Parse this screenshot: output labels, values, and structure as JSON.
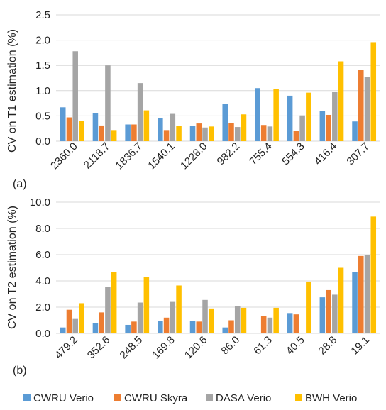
{
  "chart_data": [
    {
      "type": "bar",
      "panel_label": "(a)",
      "ylabel": "CV on T1 estimation (%)",
      "ylim": [
        0,
        2.5
      ],
      "yticks": [
        "0.0",
        "0.5",
        "1.0",
        "1.5",
        "2.0",
        "2.5"
      ],
      "grid": true,
      "categories": [
        "2360.0",
        "2118.7",
        "1836.7",
        "1540.1",
        "1228.0",
        "982.2",
        "755.4",
        "554.3",
        "416.4",
        "307.7"
      ],
      "series": [
        {
          "name": "CWRU Verio",
          "values": [
            0.67,
            0.55,
            0.33,
            0.45,
            0.3,
            0.74,
            1.05,
            0.9,
            0.59,
            0.39
          ]
        },
        {
          "name": "CWRU Skyra",
          "values": [
            0.47,
            0.31,
            0.33,
            0.22,
            0.35,
            0.36,
            0.32,
            0.21,
            0.52,
            1.41
          ]
        },
        {
          "name": "DASA Verio",
          "values": [
            1.78,
            1.5,
            1.15,
            0.54,
            0.27,
            0.28,
            0.29,
            0.51,
            0.98,
            1.27
          ]
        },
        {
          "name": "BWH Verio",
          "values": [
            0.4,
            0.22,
            0.61,
            0.3,
            0.29,
            0.53,
            1.03,
            0.96,
            1.58,
            1.96
          ]
        }
      ]
    },
    {
      "type": "bar",
      "panel_label": "(b)",
      "ylabel": "CV on T2 estimation (%)",
      "ylim": [
        0,
        10
      ],
      "yticks": [
        "0.0",
        "2.0",
        "4.0",
        "6.0",
        "8.0",
        "10.0"
      ],
      "grid": true,
      "categories": [
        "479.2",
        "352.6",
        "248.5",
        "169.8",
        "120.6",
        "86.0",
        "61.3",
        "40.5",
        "28.8",
        "19.1"
      ],
      "series": [
        {
          "name": "CWRU Verio",
          "values": [
            0.45,
            0.8,
            0.65,
            0.95,
            0.95,
            0.45,
            0.0,
            1.55,
            2.75,
            4.7
          ]
        },
        {
          "name": "CWRU Skyra",
          "values": [
            1.8,
            1.6,
            0.9,
            1.2,
            0.9,
            1.0,
            1.3,
            1.45,
            3.3,
            5.9
          ]
        },
        {
          "name": "DASA Verio",
          "values": [
            1.1,
            3.55,
            2.35,
            2.4,
            2.55,
            2.1,
            1.2,
            0.0,
            2.95,
            5.95
          ]
        },
        {
          "name": "BWH Verio",
          "values": [
            2.3,
            4.65,
            4.3,
            3.65,
            1.9,
            1.95,
            1.95,
            3.95,
            5.0,
            8.9
          ]
        }
      ]
    }
  ],
  "legend": {
    "placement": "bottom",
    "items": [
      {
        "label": "CWRU Verio",
        "color": "#5B9BD5"
      },
      {
        "label": "CWRU Skyra",
        "color": "#ED7D31"
      },
      {
        "label": "DASA Verio",
        "color": "#A5A5A5"
      },
      {
        "label": "BWH Verio",
        "color": "#FFC000"
      }
    ]
  }
}
